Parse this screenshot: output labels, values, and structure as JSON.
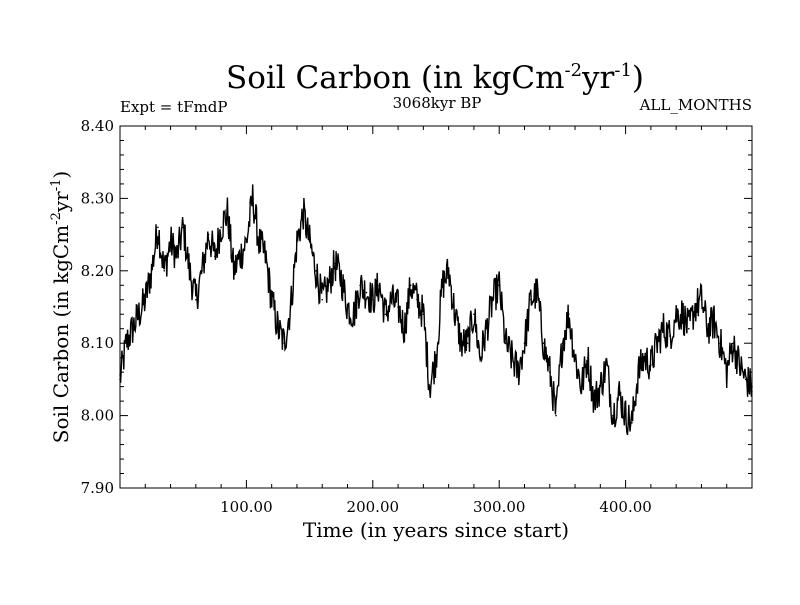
{
  "header": {
    "expt": "Expt = tFmdP",
    "period": "3068kyr BP",
    "months": "ALL_MONTHS"
  },
  "chart_data": {
    "type": "line",
    "title": "Soil Carbon (in kgCm^-2yr^-1)",
    "title_parts": {
      "main": "Soil Carbon (in kgCm",
      "sup1": "-2",
      "mid": "yr",
      "sup2": "-1",
      "end": ")"
    },
    "ylabel_parts": {
      "main": "Soil Carbon (in kgCm",
      "sup1": "-2",
      "mid": "yr",
      "sup2": "-1",
      "end": ")"
    },
    "xlabel": "Time (in years since start)",
    "xlim": [
      0,
      500
    ],
    "ylim": [
      7.9,
      8.4
    ],
    "grid": false,
    "x_ticks": [
      100,
      200,
      300,
      400
    ],
    "x_tick_labels": [
      "100.00",
      "200.00",
      "300.00",
      "400.00"
    ],
    "y_ticks": [
      7.9,
      8.0,
      8.1,
      8.2,
      8.3,
      8.4
    ],
    "y_tick_labels": [
      "7.90",
      "8.00",
      "8.10",
      "8.20",
      "8.30",
      "8.40"
    ],
    "series": [
      {
        "name": "Soil Carbon",
        "color": "#000000",
        "x": [
          0,
          5,
          10,
          15,
          20,
          25,
          30,
          35,
          40,
          45,
          50,
          55,
          60,
          65,
          70,
          75,
          80,
          85,
          90,
          95,
          100,
          105,
          110,
          115,
          120,
          125,
          130,
          135,
          140,
          145,
          150,
          155,
          160,
          165,
          170,
          175,
          180,
          185,
          190,
          195,
          200,
          205,
          210,
          215,
          220,
          225,
          230,
          235,
          240,
          245,
          250,
          255,
          260,
          265,
          270,
          275,
          280,
          285,
          290,
          295,
          300,
          305,
          310,
          315,
          320,
          325,
          330,
          335,
          340,
          345,
          350,
          355,
          360,
          365,
          370,
          375,
          380,
          385,
          390,
          395,
          400,
          405,
          410,
          415,
          420,
          425,
          430,
          435,
          440,
          445,
          450,
          455,
          460,
          465,
          470,
          475,
          480,
          485,
          490,
          495,
          500
        ],
        "values": [
          8.05,
          8.1,
          8.12,
          8.14,
          8.16,
          8.2,
          8.26,
          8.2,
          8.24,
          8.22,
          8.26,
          8.2,
          8.16,
          8.2,
          8.25,
          8.22,
          8.26,
          8.28,
          8.2,
          8.22,
          8.24,
          8.3,
          8.24,
          8.22,
          8.16,
          8.12,
          8.1,
          8.15,
          8.24,
          8.28,
          8.24,
          8.2,
          8.16,
          8.18,
          8.21,
          8.19,
          8.15,
          8.14,
          8.18,
          8.17,
          8.16,
          8.18,
          8.14,
          8.16,
          8.15,
          8.12,
          8.18,
          8.16,
          8.14,
          8.04,
          8.08,
          8.18,
          8.2,
          8.14,
          8.1,
          8.1,
          8.14,
          8.08,
          8.12,
          8.16,
          8.18,
          8.1,
          8.08,
          8.06,
          8.1,
          8.16,
          8.17,
          8.1,
          8.06,
          8.0,
          8.1,
          8.14,
          8.08,
          8.04,
          8.08,
          8.02,
          8.04,
          8.07,
          8.0,
          8.03,
          8.0,
          7.99,
          8.06,
          8.08,
          8.07,
          8.1,
          8.12,
          8.11,
          8.14,
          8.14,
          8.12,
          8.15,
          8.16,
          8.12,
          8.13,
          8.1,
          8.06,
          8.1,
          8.07,
          8.05,
          8.04
        ]
      }
    ]
  }
}
